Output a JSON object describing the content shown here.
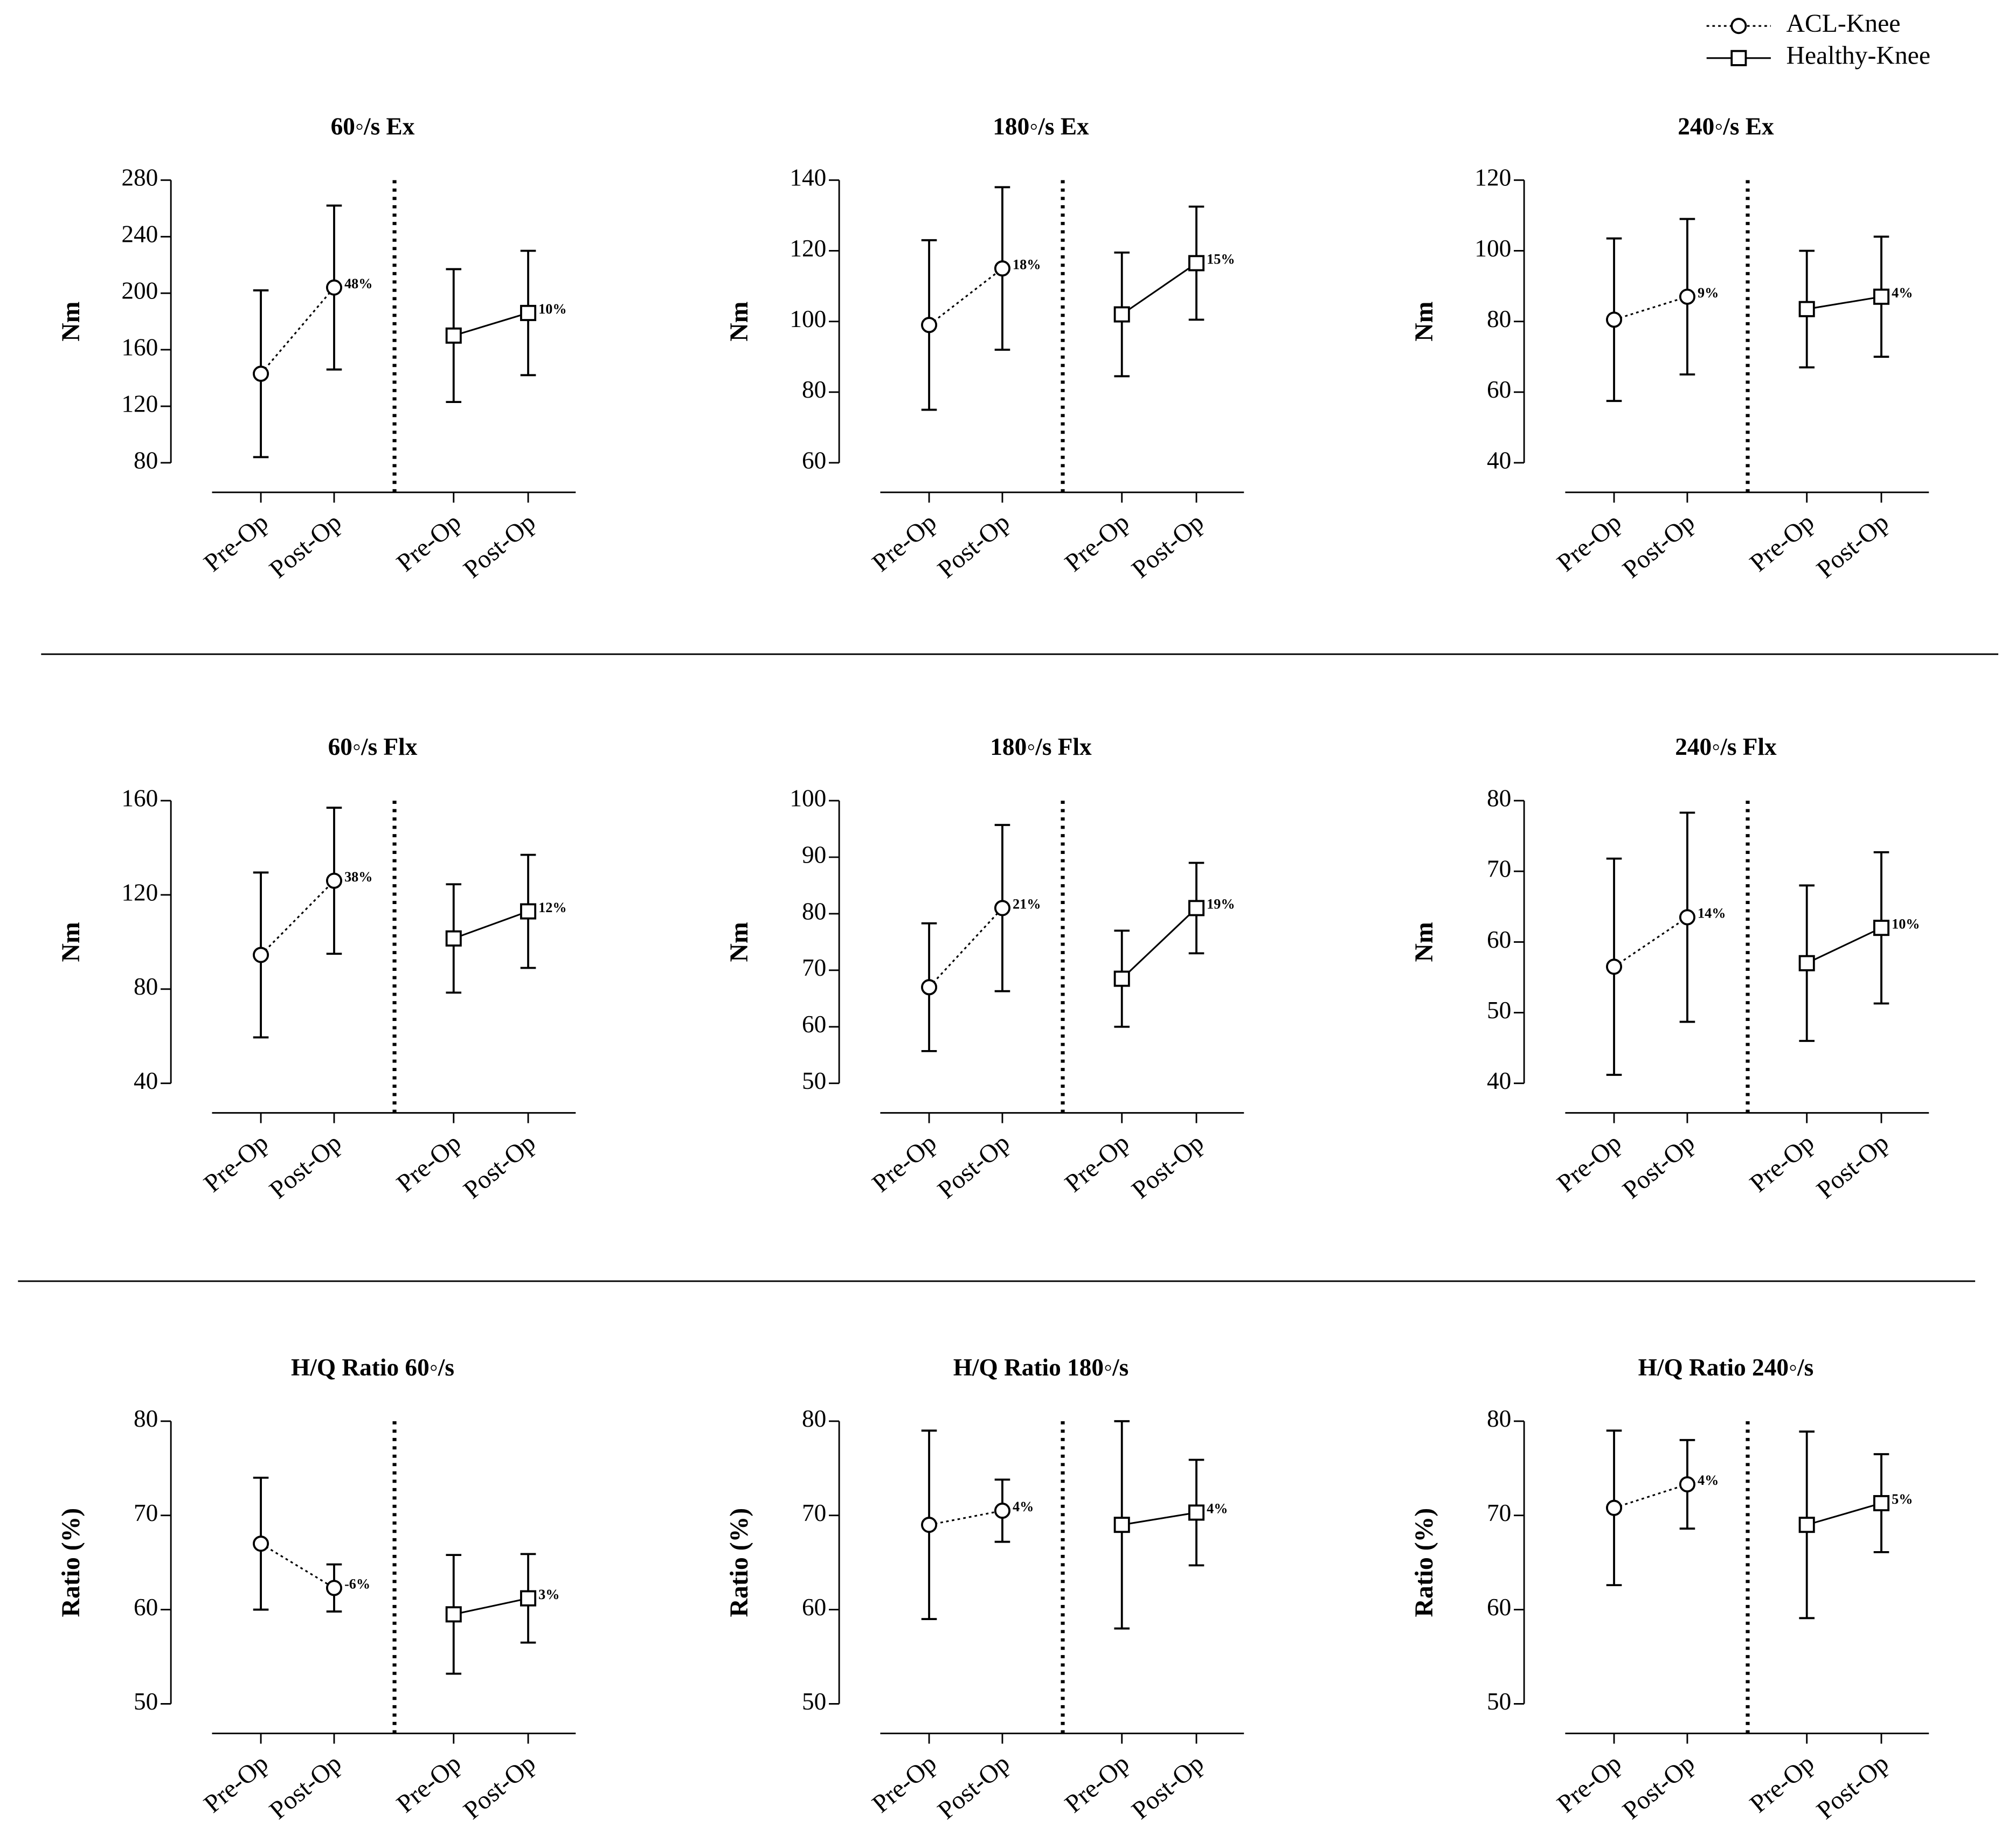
{
  "chart_data": [
    {
      "type": "line",
      "title": "60◦/s Ex",
      "ylabel": "Nm",
      "categories": [
        "Pre-Op",
        "Post-Op",
        "Pre-Op",
        "Post-Op"
      ],
      "ylim": [
        80,
        280
      ],
      "yticks": [
        80,
        120,
        160,
        200,
        240,
        280
      ],
      "series": [
        {
          "name": "ACL-Knee",
          "color": "#000000",
          "style": "dotted",
          "marker": "circle",
          "values": [
            143,
            204,
            null,
            null
          ],
          "errors": [
            59,
            58,
            null,
            null
          ],
          "annotation": "48%"
        },
        {
          "name": "Healthy-Knee",
          "color": "#000000",
          "style": "solid",
          "marker": "square",
          "values": [
            null,
            null,
            170,
            186
          ],
          "errors": [
            null,
            null,
            47,
            44
          ],
          "annotation": "10%"
        }
      ]
    },
    {
      "type": "line",
      "title": "180◦/s Ex",
      "ylabel": "Nm",
      "categories": [
        "Pre-Op",
        "Post-Op",
        "Pre-Op",
        "Post-Op"
      ],
      "ylim": [
        60,
        140
      ],
      "yticks": [
        60,
        80,
        100,
        120,
        140
      ],
      "series": [
        {
          "name": "ACL-Knee",
          "color": "#000000",
          "style": "dotted",
          "marker": "circle",
          "values": [
            99,
            115,
            null,
            null
          ],
          "errors": [
            24,
            23,
            null,
            null
          ],
          "annotation": "18%"
        },
        {
          "name": "Healthy-Knee",
          "color": "#000000",
          "style": "solid",
          "marker": "square",
          "values": [
            null,
            null,
            102,
            116.5
          ],
          "errors": [
            null,
            null,
            17.5,
            16
          ],
          "annotation": "15%"
        }
      ]
    },
    {
      "type": "line",
      "title": "240◦/s Ex",
      "ylabel": "Nm",
      "categories": [
        "Pre-Op",
        "Post-Op",
        "Pre-Op",
        "Post-Op"
      ],
      "ylim": [
        40,
        120
      ],
      "yticks": [
        40,
        60,
        80,
        100,
        120
      ],
      "series": [
        {
          "name": "ACL-Knee",
          "color": "#000000",
          "style": "dotted",
          "marker": "circle",
          "values": [
            80.5,
            87,
            null,
            null
          ],
          "errors": [
            23,
            22,
            null,
            null
          ],
          "annotation": "9%"
        },
        {
          "name": "Healthy-Knee",
          "color": "#000000",
          "style": "solid",
          "marker": "square",
          "values": [
            null,
            null,
            83.5,
            87
          ],
          "errors": [
            null,
            null,
            16.5,
            17
          ],
          "annotation": "4%"
        }
      ]
    },
    {
      "type": "line",
      "title": "60◦/s Flx",
      "ylabel": "Nm",
      "categories": [
        "Pre-Op",
        "Post-Op",
        "Pre-Op",
        "Post-Op"
      ],
      "ylim": [
        40,
        160
      ],
      "yticks": [
        40,
        80,
        120,
        160
      ],
      "series": [
        {
          "name": "ACL-Knee",
          "color": "#000000",
          "style": "dotted",
          "marker": "circle",
          "values": [
            94.5,
            126,
            null,
            null
          ],
          "errors": [
            35,
            31,
            null,
            null
          ],
          "annotation": "38%"
        },
        {
          "name": "Healthy-Knee",
          "color": "#000000",
          "style": "solid",
          "marker": "square",
          "values": [
            null,
            null,
            101.5,
            113
          ],
          "errors": [
            null,
            null,
            23,
            24
          ],
          "annotation": "12%"
        }
      ]
    },
    {
      "type": "line",
      "title": "180◦/s Flx",
      "ylabel": "Nm",
      "categories": [
        "Pre-Op",
        "Post-Op",
        "Pre-Op",
        "Post-Op"
      ],
      "ylim": [
        50,
        100
      ],
      "yticks": [
        50,
        60,
        70,
        80,
        90,
        100
      ],
      "series": [
        {
          "name": "ACL-Knee",
          "color": "#000000",
          "style": "dotted",
          "marker": "circle",
          "values": [
            67,
            81,
            null,
            null
          ],
          "errors": [
            11.3,
            14.7,
            null,
            null
          ],
          "annotation": "21%"
        },
        {
          "name": "Healthy-Knee",
          "color": "#000000",
          "style": "solid",
          "marker": "square",
          "values": [
            null,
            null,
            68.5,
            81
          ],
          "errors": [
            null,
            null,
            8.5,
            8
          ],
          "annotation": "19%"
        }
      ]
    },
    {
      "type": "line",
      "title": "240◦/s Flx",
      "ylabel": "Nm",
      "categories": [
        "Pre-Op",
        "Post-Op",
        "Pre-Op",
        "Post-Op"
      ],
      "ylim": [
        40,
        80
      ],
      "yticks": [
        40,
        50,
        60,
        70,
        80
      ],
      "series": [
        {
          "name": "ACL-Knee",
          "color": "#000000",
          "style": "dotted",
          "marker": "circle",
          "values": [
            56.5,
            63.5,
            null,
            null
          ],
          "errors": [
            15.3,
            14.8,
            null,
            null
          ],
          "annotation": "14%"
        },
        {
          "name": "Healthy-Knee",
          "color": "#000000",
          "style": "solid",
          "marker": "square",
          "values": [
            null,
            null,
            57,
            62
          ],
          "errors": [
            null,
            null,
            11,
            10.7
          ],
          "annotation": "10%"
        }
      ]
    },
    {
      "type": "line",
      "title": "H/Q Ratio 60◦/s",
      "ylabel": "Ratio (%)",
      "categories": [
        "Pre-Op",
        "Post-Op",
        "Pre-Op",
        "Post-Op"
      ],
      "ylim": [
        50,
        80
      ],
      "yticks": [
        50,
        60,
        70,
        80
      ],
      "series": [
        {
          "name": "ACL-Knee",
          "color": "#000000",
          "style": "dotted",
          "marker": "circle",
          "values": [
            67,
            62.3,
            null,
            null
          ],
          "errors": [
            7,
            2.5,
            null,
            null
          ],
          "annotation": "-6%"
        },
        {
          "name": "Healthy-Knee",
          "color": "#000000",
          "style": "solid",
          "marker": "square",
          "values": [
            null,
            null,
            59.5,
            61.2
          ],
          "errors": [
            null,
            null,
            6.3,
            4.7
          ],
          "annotation": "3%"
        }
      ]
    },
    {
      "type": "line",
      "title": "H/Q Ratio 180◦/s",
      "ylabel": "Ratio (%)",
      "categories": [
        "Pre-Op",
        "Post-Op",
        "Pre-Op",
        "Post-Op"
      ],
      "ylim": [
        50,
        80
      ],
      "yticks": [
        50,
        60,
        70,
        80
      ],
      "series": [
        {
          "name": "ACL-Knee",
          "color": "#000000",
          "style": "dotted",
          "marker": "circle",
          "values": [
            69,
            70.5,
            null,
            null
          ],
          "errors": [
            10,
            3.3,
            null,
            null
          ],
          "annotation": "4%"
        },
        {
          "name": "Healthy-Knee",
          "color": "#000000",
          "style": "solid",
          "marker": "square",
          "values": [
            null,
            null,
            69,
            70.3
          ],
          "errors": [
            null,
            null,
            11,
            5.6
          ],
          "annotation": "4%"
        }
      ]
    },
    {
      "type": "line",
      "title": "H/Q Ratio 240◦/s",
      "ylabel": "Ratio (%)",
      "categories": [
        "Pre-Op",
        "Post-Op",
        "Pre-Op",
        "Post-Op"
      ],
      "ylim": [
        50,
        80
      ],
      "yticks": [
        50,
        60,
        70,
        80
      ],
      "series": [
        {
          "name": "ACL-Knee",
          "color": "#000000",
          "style": "dotted",
          "marker": "circle",
          "values": [
            70.8,
            73.3,
            null,
            null
          ],
          "errors": [
            8.2,
            4.7,
            null,
            null
          ],
          "annotation": "4%"
        },
        {
          "name": "Healthy-Knee",
          "color": "#000000",
          "style": "solid",
          "marker": "square",
          "values": [
            null,
            null,
            69,
            71.3
          ],
          "errors": [
            null,
            null,
            9.9,
            5.2
          ],
          "annotation": "5%"
        }
      ]
    }
  ]
}
